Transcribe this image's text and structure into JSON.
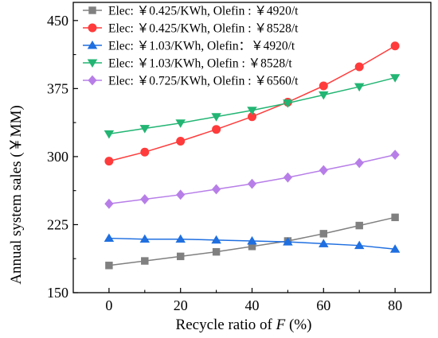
{
  "chart_data": {
    "type": "line",
    "xlabel": "Recycle ratio of ",
    "xlabel_var": "F",
    "xlabel_unit": " (%)",
    "ylabel": "Annual system sales (￥MM)",
    "xlim": [
      -10,
      90
    ],
    "ylim": [
      150,
      470
    ],
    "x_ticks": [
      0,
      20,
      40,
      60,
      80
    ],
    "y_ticks": [
      150,
      225,
      300,
      375,
      450
    ],
    "grid": false,
    "legend_position": "top-left",
    "x": [
      0,
      10,
      20,
      30,
      40,
      50,
      60,
      70,
      80
    ],
    "series": [
      {
        "name": "Elec: ￥0.425/KWh, Olefin : ￥4920/t",
        "color": "#808080",
        "marker": "square",
        "values": [
          180,
          185,
          190,
          195,
          201,
          207,
          215,
          224,
          233
        ]
      },
      {
        "name": "Elec: ￥0.425/KWh, Olefin : ￥8528/t",
        "color": "#ff3b3b",
        "marker": "circle",
        "values": [
          295,
          305,
          317,
          330,
          344,
          360,
          378,
          399,
          422
        ]
      },
      {
        "name": "Elec: ￥1.03/KWh, Olefin：￥4920/t",
        "color": "#1f6fe0",
        "marker": "triangle-up",
        "values": [
          210,
          209,
          209,
          208,
          207,
          206,
          204,
          202,
          198
        ]
      },
      {
        "name": "Elec: ￥1.03/KWh, Olefin : ￥8528/t",
        "color": "#22b573",
        "marker": "triangle-down",
        "values": [
          325,
          331,
          337,
          344,
          351,
          359,
          368,
          377,
          387
        ]
      },
      {
        "name": "Elec: ￥0.725/KWh, Olefin : ￥6560/t",
        "color": "#b77ee8",
        "marker": "diamond",
        "values": [
          248,
          253,
          258,
          264,
          270,
          277,
          285,
          293,
          302
        ]
      }
    ]
  }
}
